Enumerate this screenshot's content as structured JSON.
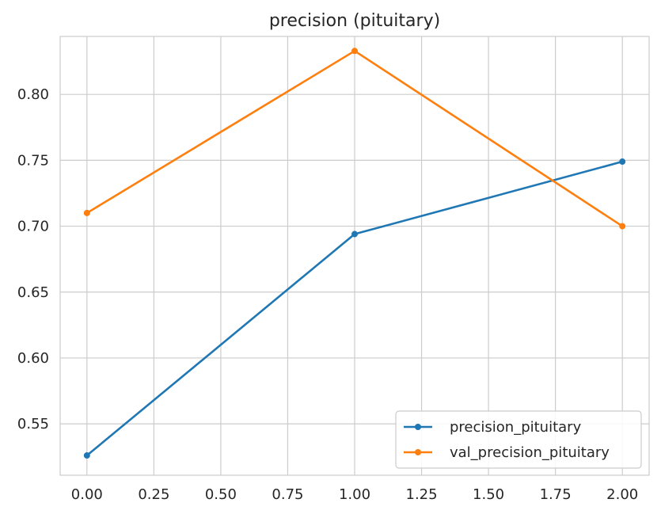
{
  "chart_data": {
    "type": "line",
    "title": "precision (pituitary)",
    "xlabel": "",
    "ylabel": "",
    "x": [
      0,
      1,
      2
    ],
    "xlim": [
      -0.1,
      2.1
    ],
    "ylim": [
      0.511,
      0.844
    ],
    "xticks": [
      0.0,
      0.25,
      0.5,
      0.75,
      1.0,
      1.25,
      1.5,
      1.75,
      2.0
    ],
    "xtick_labels": [
      "0.00",
      "0.25",
      "0.50",
      "0.75",
      "1.00",
      "1.25",
      "1.50",
      "1.75",
      "2.00"
    ],
    "yticks": [
      0.55,
      0.6,
      0.65,
      0.7,
      0.75,
      0.8
    ],
    "ytick_labels": [
      "0.55",
      "0.60",
      "0.65",
      "0.70",
      "0.75",
      "0.80"
    ],
    "grid": true,
    "legend_position": "bottom-right",
    "series": [
      {
        "name": "precision_pituitary",
        "color": "#1f77b4",
        "values": [
          0.526,
          0.694,
          0.749
        ]
      },
      {
        "name": "val_precision_pituitary",
        "color": "#ff7f0e",
        "values": [
          0.71,
          0.833,
          0.7
        ]
      }
    ]
  }
}
